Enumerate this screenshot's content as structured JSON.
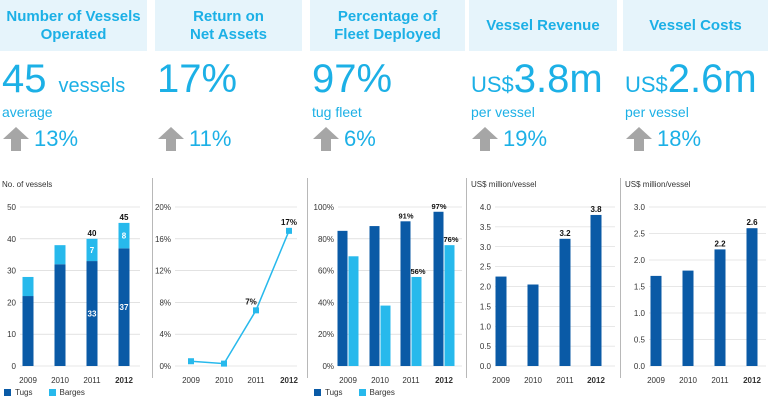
{
  "panels": [
    {
      "title": "Number of Vessels\nOperated",
      "big": "45",
      "unit": "vessels",
      "sub": "average",
      "change": "13%"
    },
    {
      "title": "Return on\nNet Assets",
      "big": "17%",
      "unit": "",
      "sub": "",
      "change": "11%"
    },
    {
      "title": "Percentage of\nFleet Deployed",
      "big": "97%",
      "unit": "",
      "sub": "tug fleet",
      "change": "6%"
    },
    {
      "title": "Vessel Revenue",
      "cur": "US$",
      "big": "3.8m",
      "sub": "per vessel",
      "change": "19%"
    },
    {
      "title": "Vessel Costs",
      "cur": "US$",
      "big": "2.6m",
      "sub": "per vessel",
      "change": "18%"
    }
  ],
  "colors": {
    "dark": "#0a5aa6",
    "light": "#27b9ec",
    "header_bg": "#e6f4fb",
    "accent": "#1cb0e6",
    "arrow": "#a6a6a6"
  },
  "chart_data": [
    {
      "type": "bar",
      "stacked": true,
      "ylabel": "No. of vessels",
      "categories": [
        "2009",
        "2010",
        "2011",
        "2012"
      ],
      "ylim": [
        0,
        50
      ],
      "yticks": [
        "0",
        "10",
        "20",
        "30",
        "40",
        "50"
      ],
      "series": [
        {
          "name": "Tugs",
          "values": [
            22,
            32,
            33,
            37
          ]
        },
        {
          "name": "Barges",
          "values": [
            6,
            6,
            7,
            8
          ]
        }
      ],
      "segment_labels": {
        "Tugs": [
          "",
          "",
          "33",
          "37"
        ],
        "Barges": [
          "",
          "",
          "7",
          "8"
        ]
      },
      "total_labels": [
        "",
        "",
        "40",
        "45"
      ],
      "legend": [
        "Tugs",
        "Barges"
      ]
    },
    {
      "type": "line",
      "ylabel": "",
      "categories": [
        "2009",
        "2010",
        "2011",
        "2012"
      ],
      "ylim": [
        0,
        20
      ],
      "yticks": [
        "0%",
        "4%",
        "8%",
        "12%",
        "16%",
        "20%"
      ],
      "series": [
        {
          "name": "",
          "values": [
            0.6,
            0.3,
            7,
            17
          ]
        }
      ],
      "point_labels": [
        "",
        "",
        "7%",
        "17%"
      ]
    },
    {
      "type": "bar",
      "grouped": true,
      "ylabel": "",
      "categories": [
        "2009",
        "2010",
        "2011",
        "2012"
      ],
      "ylim": [
        0,
        100
      ],
      "yticks": [
        "0%",
        "20%",
        "40%",
        "60%",
        "80%",
        "100%"
      ],
      "series": [
        {
          "name": "Tugs",
          "values": [
            85,
            88,
            91,
            97
          ]
        },
        {
          "name": "Barges",
          "values": [
            69,
            38,
            56,
            76
          ]
        }
      ],
      "bar_labels": {
        "Tugs": [
          "",
          "",
          "91%",
          "97%"
        ],
        "Barges": [
          "",
          "",
          "56%",
          "76%"
        ]
      },
      "legend": [
        "Tugs",
        "Barges"
      ]
    },
    {
      "type": "bar",
      "ylabel": "US$ million/vessel",
      "categories": [
        "2009",
        "2010",
        "2011",
        "2012"
      ],
      "ylim": [
        0,
        4
      ],
      "yticks": [
        "0.0",
        "0.5",
        "1.0",
        "1.5",
        "2.0",
        "2.5",
        "3.0",
        "3.5",
        "4.0"
      ],
      "series": [
        {
          "name": "",
          "values": [
            2.25,
            2.05,
            3.2,
            3.8
          ]
        }
      ],
      "bar_labels": [
        "",
        "",
        "3.2",
        "3.8"
      ]
    },
    {
      "type": "bar",
      "ylabel": "US$ million/vessel",
      "categories": [
        "2009",
        "2010",
        "2011",
        "2012"
      ],
      "ylim": [
        0,
        3
      ],
      "yticks": [
        "0.0",
        "0.5",
        "1.0",
        "1.5",
        "2.0",
        "2.5",
        "3.0"
      ],
      "series": [
        {
          "name": "",
          "values": [
            1.7,
            1.8,
            2.2,
            2.6
          ]
        }
      ],
      "bar_labels": [
        "",
        "",
        "2.2",
        "2.6"
      ]
    }
  ]
}
